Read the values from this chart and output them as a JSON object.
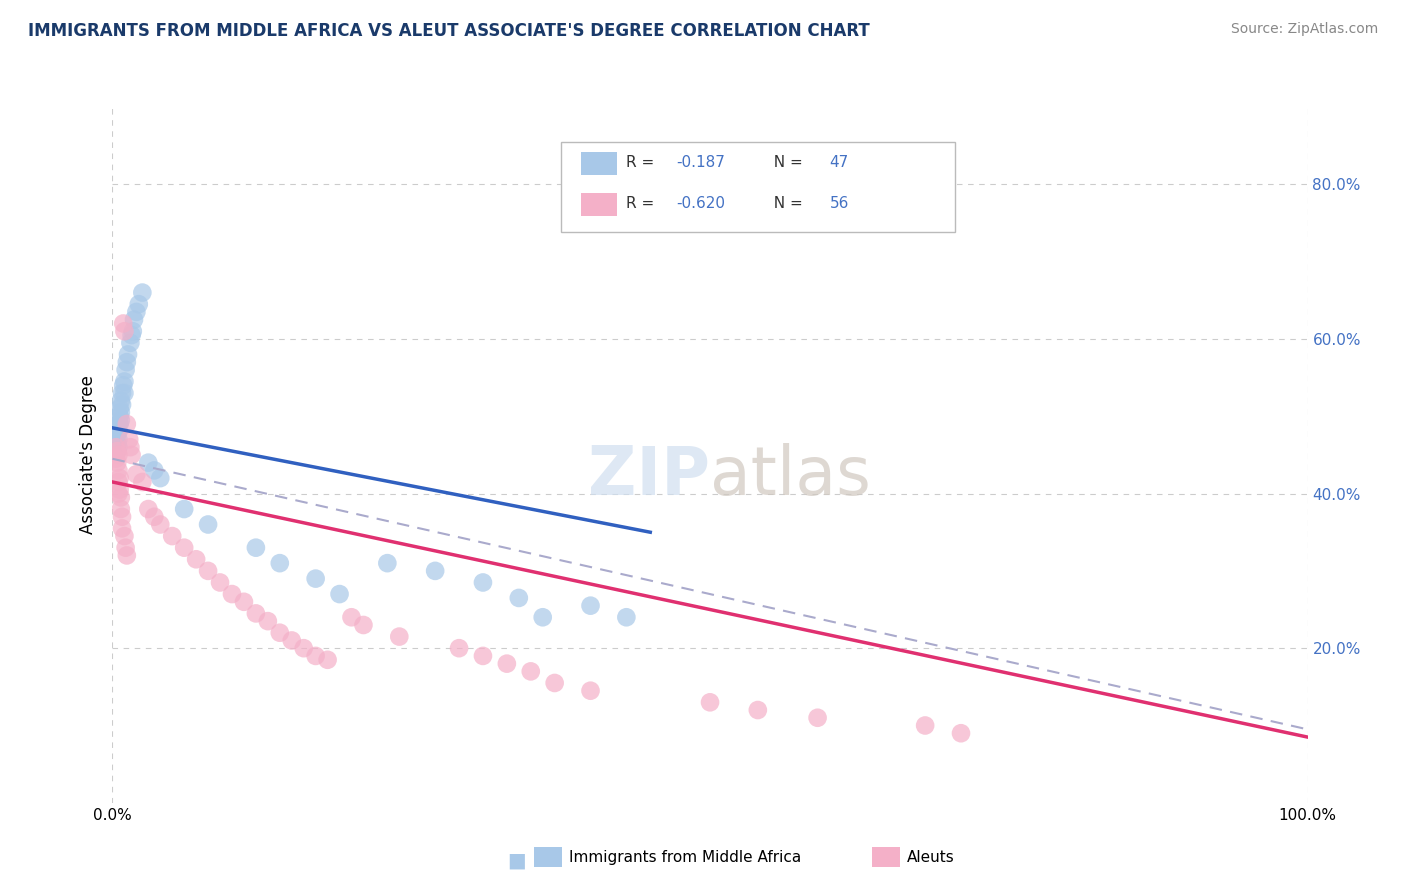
{
  "title": "IMMIGRANTS FROM MIDDLE AFRICA VS ALEUT ASSOCIATE'S DEGREE CORRELATION CHART",
  "source": "Source: ZipAtlas.com",
  "ylabel": "Associate's Degree",
  "legend_blue_label": "Immigrants from Middle Africa",
  "legend_pink_label": "Aleuts",
  "R_blue": -0.187,
  "N_blue": 47,
  "R_pink": -0.62,
  "N_pink": 56,
  "blue_color": "#a8c8e8",
  "pink_color": "#f4b0c8",
  "blue_line_color": "#3060c0",
  "pink_line_color": "#e03070",
  "gray_dash_color": "#aaaacc",
  "title_color": "#1a3a6a",
  "source_color": "#888888",
  "right_tick_color": "#4472c4",
  "blue_scatter": [
    [
      0.003,
      0.47
    ],
    [
      0.003,
      0.46
    ],
    [
      0.004,
      0.485
    ],
    [
      0.004,
      0.478
    ],
    [
      0.004,
      0.465
    ],
    [
      0.004,
      0.455
    ],
    [
      0.005,
      0.49
    ],
    [
      0.005,
      0.48
    ],
    [
      0.005,
      0.47
    ],
    [
      0.005,
      0.46
    ],
    [
      0.006,
      0.51
    ],
    [
      0.006,
      0.5
    ],
    [
      0.006,
      0.49
    ],
    [
      0.007,
      0.52
    ],
    [
      0.007,
      0.505
    ],
    [
      0.007,
      0.495
    ],
    [
      0.008,
      0.53
    ],
    [
      0.008,
      0.515
    ],
    [
      0.009,
      0.54
    ],
    [
      0.01,
      0.545
    ],
    [
      0.01,
      0.53
    ],
    [
      0.011,
      0.56
    ],
    [
      0.012,
      0.57
    ],
    [
      0.013,
      0.58
    ],
    [
      0.015,
      0.595
    ],
    [
      0.016,
      0.605
    ],
    [
      0.017,
      0.61
    ],
    [
      0.018,
      0.625
    ],
    [
      0.02,
      0.635
    ],
    [
      0.022,
      0.645
    ],
    [
      0.025,
      0.66
    ],
    [
      0.03,
      0.44
    ],
    [
      0.035,
      0.43
    ],
    [
      0.04,
      0.42
    ],
    [
      0.06,
      0.38
    ],
    [
      0.08,
      0.36
    ],
    [
      0.12,
      0.33
    ],
    [
      0.14,
      0.31
    ],
    [
      0.17,
      0.29
    ],
    [
      0.19,
      0.27
    ],
    [
      0.23,
      0.31
    ],
    [
      0.27,
      0.3
    ],
    [
      0.31,
      0.285
    ],
    [
      0.34,
      0.265
    ],
    [
      0.36,
      0.24
    ],
    [
      0.4,
      0.255
    ],
    [
      0.43,
      0.24
    ]
  ],
  "pink_scatter": [
    [
      0.003,
      0.46
    ],
    [
      0.003,
      0.445
    ],
    [
      0.004,
      0.455
    ],
    [
      0.004,
      0.44
    ],
    [
      0.005,
      0.45
    ],
    [
      0.005,
      0.43
    ],
    [
      0.005,
      0.415
    ],
    [
      0.005,
      0.4
    ],
    [
      0.006,
      0.42
    ],
    [
      0.006,
      0.405
    ],
    [
      0.007,
      0.395
    ],
    [
      0.007,
      0.38
    ],
    [
      0.008,
      0.37
    ],
    [
      0.008,
      0.355
    ],
    [
      0.009,
      0.62
    ],
    [
      0.01,
      0.61
    ],
    [
      0.01,
      0.345
    ],
    [
      0.011,
      0.33
    ],
    [
      0.012,
      0.32
    ],
    [
      0.012,
      0.49
    ],
    [
      0.014,
      0.47
    ],
    [
      0.015,
      0.46
    ],
    [
      0.016,
      0.45
    ],
    [
      0.02,
      0.425
    ],
    [
      0.025,
      0.415
    ],
    [
      0.03,
      0.38
    ],
    [
      0.035,
      0.37
    ],
    [
      0.04,
      0.36
    ],
    [
      0.05,
      0.345
    ],
    [
      0.06,
      0.33
    ],
    [
      0.07,
      0.315
    ],
    [
      0.08,
      0.3
    ],
    [
      0.09,
      0.285
    ],
    [
      0.1,
      0.27
    ],
    [
      0.11,
      0.26
    ],
    [
      0.12,
      0.245
    ],
    [
      0.13,
      0.235
    ],
    [
      0.14,
      0.22
    ],
    [
      0.15,
      0.21
    ],
    [
      0.16,
      0.2
    ],
    [
      0.17,
      0.19
    ],
    [
      0.18,
      0.185
    ],
    [
      0.2,
      0.24
    ],
    [
      0.21,
      0.23
    ],
    [
      0.24,
      0.215
    ],
    [
      0.29,
      0.2
    ],
    [
      0.31,
      0.19
    ],
    [
      0.33,
      0.18
    ],
    [
      0.35,
      0.17
    ],
    [
      0.37,
      0.155
    ],
    [
      0.4,
      0.145
    ],
    [
      0.5,
      0.13
    ],
    [
      0.54,
      0.12
    ],
    [
      0.59,
      0.11
    ],
    [
      0.68,
      0.1
    ],
    [
      0.71,
      0.09
    ]
  ],
  "blue_line": [
    0.0,
    0.485,
    0.45,
    0.35
  ],
  "pink_line": [
    0.0,
    0.415,
    1.0,
    0.085
  ],
  "gray_line": [
    0.0,
    0.445,
    1.0,
    0.095
  ],
  "xlim": [
    0.0,
    1.0
  ],
  "ylim": [
    0.0,
    0.9
  ],
  "figsize": [
    14.06,
    8.92
  ],
  "dpi": 100
}
